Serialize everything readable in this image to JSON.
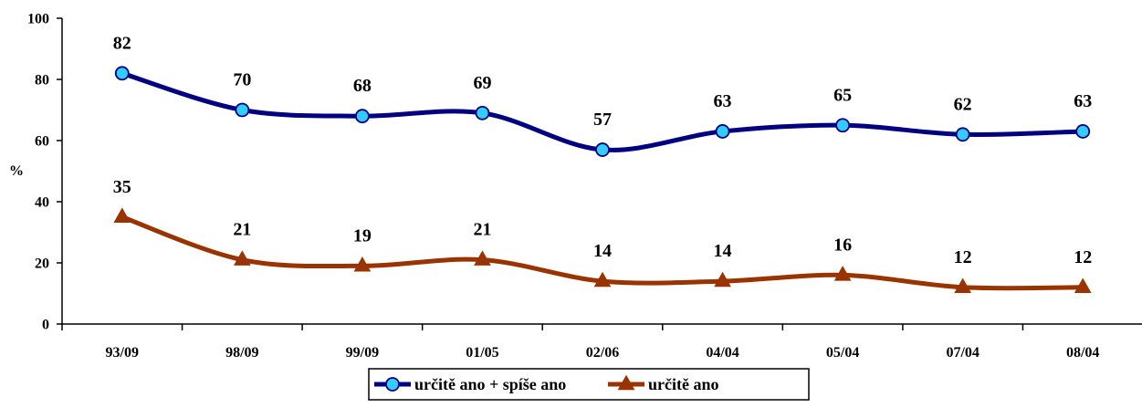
{
  "chart_data": {
    "type": "line",
    "title": "",
    "xlabel": "",
    "ylabel": "%",
    "ylim": [
      0,
      100
    ],
    "yticks": [
      0,
      20,
      40,
      60,
      80,
      100
    ],
    "categories": [
      "93/09",
      "98/09",
      "99/09",
      "01/05",
      "02/06",
      "04/04",
      "05/04",
      "07/04",
      "08/04"
    ],
    "grid": false,
    "legend_position": "bottom",
    "smooth": true,
    "series": [
      {
        "name": "určitě ano + spíše ano",
        "values": [
          82,
          70,
          68,
          69,
          57,
          63,
          65,
          62,
          63
        ],
        "line_color": "#000080",
        "marker": "circle",
        "marker_fill": "#33ccff",
        "marker_stroke": "#000080"
      },
      {
        "name": "určitě ano",
        "values": [
          35,
          21,
          19,
          21,
          14,
          14,
          16,
          12,
          12
        ],
        "line_color": "#993300",
        "marker": "triangle",
        "marker_fill": "#993300",
        "marker_stroke": "#993300"
      }
    ]
  }
}
